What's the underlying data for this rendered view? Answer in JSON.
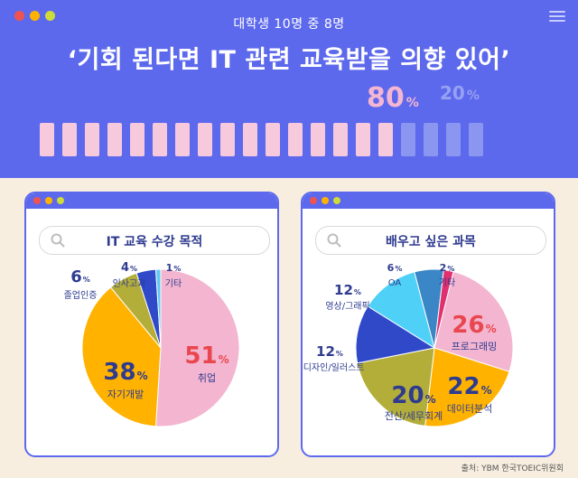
{
  "window": {
    "dot_colors": [
      "#ef5350",
      "#ffb300",
      "#cddc39"
    ]
  },
  "header": {
    "subtitle": "대학생 10명 중 8명",
    "headline": "‘기회 된다면 IT 관련 교육받을 의향 있어’",
    "yes_value": "80",
    "no_value": "20",
    "percent_sign": "%",
    "yes_segments": 16,
    "no_segments": 4,
    "yes_color": "#f6c9dd",
    "no_color": "#8b96f0"
  },
  "source": "출처: YBM 한국TOEIC위원회",
  "chart_data": [
    {
      "type": "pie",
      "title": "IT 교육 수강 목적",
      "slices": [
        {
          "label": "취업",
          "value": 51,
          "color": "#f3b5cf",
          "value_color": "#e9474f"
        },
        {
          "label": "자기개발",
          "value": 38,
          "color": "#ffb300",
          "value_color": "#2e3b8f"
        },
        {
          "label": "졸업인증",
          "value": 6,
          "color": "#b3ad3a",
          "value_color": "#2e3b8f"
        },
        {
          "label": "인사고과",
          "value": 4,
          "color": "#2f49c9",
          "value_color": "#2e3b8f"
        },
        {
          "label": "기타",
          "value": 1,
          "color": "#5cc8f5",
          "value_color": "#2e3b8f"
        }
      ]
    },
    {
      "type": "pie",
      "title": "배우고 싶은 과목",
      "slices": [
        {
          "label": "프로그래밍",
          "value": 26,
          "color": "#f3b5cf",
          "value_color": "#e9474f"
        },
        {
          "label": "데이터분석",
          "value": 22,
          "color": "#ffb300",
          "value_color": "#2e3b8f"
        },
        {
          "label": "전산/세무회계",
          "value": 20,
          "color": "#b3ad3a",
          "value_color": "#2e3b8f"
        },
        {
          "label": "웹디자인/일러스트",
          "value": 12,
          "color": "#2f49c9",
          "value_color": "#2e3b8f"
        },
        {
          "label": "영상/그래픽",
          "value": 12,
          "color": "#4fd0f7",
          "value_color": "#2e3b8f"
        },
        {
          "label": "OA",
          "value": 6,
          "color": "#3a86c6",
          "value_color": "#2e3b8f"
        },
        {
          "label": "기타",
          "value": 2,
          "color": "#e0306f",
          "value_color": "#2e3b8f"
        }
      ]
    }
  ]
}
